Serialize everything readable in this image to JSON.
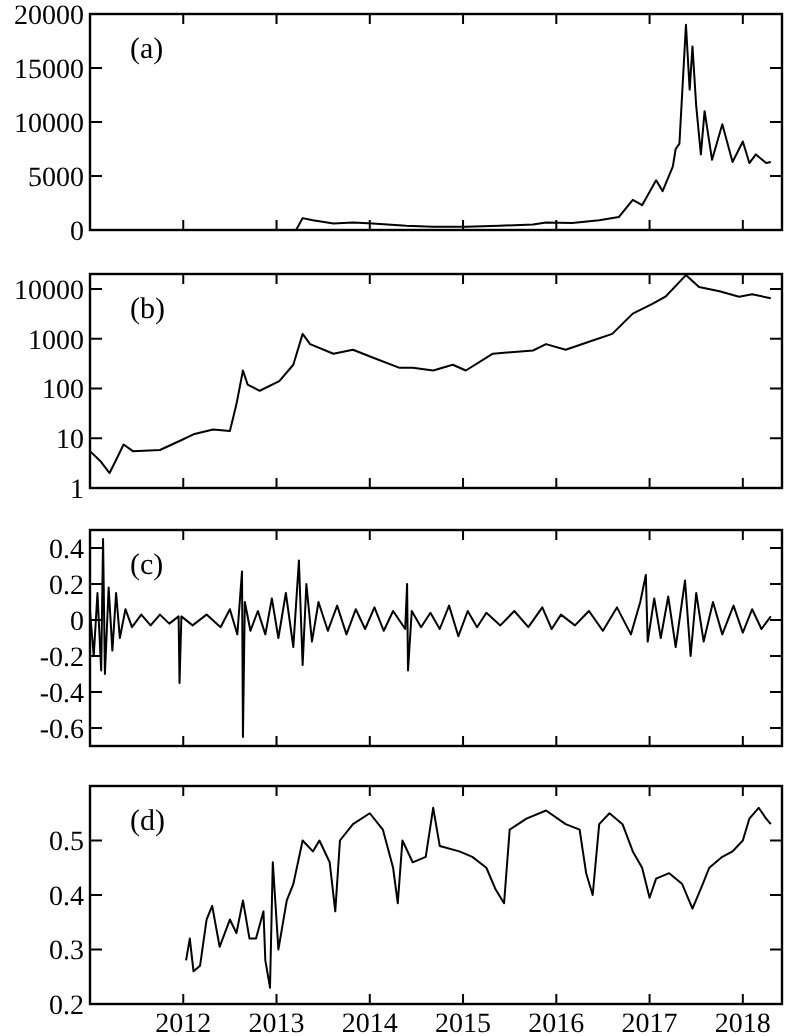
{
  "chart_data": [
    {
      "type": "line",
      "annotations": [
        "(a)"
      ],
      "xlim": [
        2011,
        2018.42
      ],
      "xticks": [
        2012,
        2013,
        2014,
        2015,
        2016,
        2017,
        2018
      ],
      "ylim": [
        0,
        20000
      ],
      "yticks": [
        0,
        5000,
        10000,
        15000,
        20000
      ],
      "tick_labels": "y",
      "grid": false,
      "marker": "none",
      "line_style": "solid",
      "series": [
        {
          "color": "#000000",
          "x": [
            2011.0,
            2012.61,
            2013.21,
            2013.28,
            2013.39,
            2013.61,
            2013.82,
            2014.03,
            2014.39,
            2014.68,
            2015.03,
            2015.39,
            2015.75,
            2015.89,
            2016.17,
            2016.46,
            2016.67,
            2016.82,
            2016.92,
            2017.07,
            2017.14,
            2017.25,
            2017.28,
            2017.32,
            2017.39,
            2017.43,
            2017.46,
            2017.5,
            2017.55,
            2017.59,
            2017.67,
            2017.78,
            2017.89,
            2018.0,
            2018.07,
            2018.14,
            2018.25,
            2018.3
          ],
          "values": [
            0,
            0,
            0,
            1100,
            900,
            600,
            700,
            600,
            400,
            300,
            300,
            400,
            500,
            700,
            650,
            900,
            1200,
            2800,
            2300,
            4600,
            3600,
            5900,
            7500,
            8000,
            19000,
            13000,
            17000,
            11500,
            7000,
            11000,
            6500,
            9800,
            6300,
            8200,
            6200,
            7000,
            6200,
            6300
          ]
        }
      ]
    },
    {
      "type": "line",
      "annotations": [
        "(b)"
      ],
      "xlim": [
        2011,
        2018.42
      ],
      "xticks": [
        2012,
        2013,
        2014,
        2015,
        2016,
        2017,
        2018
      ],
      "log": "y",
      "ylim": [
        1,
        20000
      ],
      "yticks": [
        1,
        10,
        100,
        1000,
        10000
      ],
      "tick_labels": "y",
      "grid": false,
      "marker": "none",
      "line_style": "solid",
      "series": [
        {
          "color": "#000000",
          "x": [
            2011.0,
            2011.11,
            2011.21,
            2011.29,
            2011.36,
            2011.46,
            2011.75,
            2011.96,
            2012.11,
            2012.32,
            2012.5,
            2012.57,
            2012.64,
            2012.69,
            2012.82,
            2013.03,
            2013.18,
            2013.28,
            2013.36,
            2013.61,
            2013.82,
            2014.03,
            2014.32,
            2014.46,
            2014.68,
            2014.89,
            2015.03,
            2015.32,
            2015.75,
            2015.89,
            2016.1,
            2016.39,
            2016.6,
            2016.82,
            2017.03,
            2017.17,
            2017.39,
            2017.53,
            2017.75,
            2017.96,
            2018.1,
            2018.3
          ],
          "values": [
            5.5,
            3.5,
            2,
            4,
            7.5,
            5.5,
            5.8,
            8.8,
            12,
            15,
            14,
            48,
            230,
            120,
            90,
            140,
            300,
            1250,
            780,
            500,
            600,
            420,
            260,
            260,
            230,
            300,
            230,
            500,
            580,
            780,
            600,
            920,
            1250,
            3200,
            5000,
            7000,
            19000,
            11000,
            9000,
            7000,
            7800,
            6500
          ]
        }
      ]
    },
    {
      "type": "line",
      "annotations": [
        "(c)"
      ],
      "xlim": [
        2011,
        2018.42
      ],
      "xticks": [
        2012,
        2013,
        2014,
        2015,
        2016,
        2017,
        2018
      ],
      "ylim": [
        -0.7,
        0.5
      ],
      "yticks": [
        -0.6,
        -0.4,
        -0.2,
        0,
        0.2,
        0.4
      ],
      "tick_labels": "y",
      "grid": false,
      "marker": "none",
      "line_style": "solid",
      "series": [
        {
          "color": "#000000",
          "x": [
            2011.0,
            2011.04,
            2011.08,
            2011.12,
            2011.14,
            2011.16,
            2011.2,
            2011.24,
            2011.28,
            2011.32,
            2011.38,
            2011.45,
            2011.55,
            2011.65,
            2011.75,
            2011.85,
            2011.95,
            2011.96,
            2011.98,
            2012.1,
            2012.25,
            2012.4,
            2012.5,
            2012.58,
            2012.63,
            2012.64,
            2012.66,
            2012.72,
            2012.8,
            2012.88,
            2012.95,
            2013.02,
            2013.1,
            2013.18,
            2013.24,
            2013.28,
            2013.32,
            2013.38,
            2013.45,
            2013.55,
            2013.65,
            2013.75,
            2013.85,
            2013.95,
            2014.05,
            2014.15,
            2014.25,
            2014.38,
            2014.4,
            2014.41,
            2014.45,
            2014.55,
            2014.65,
            2014.75,
            2014.85,
            2014.95,
            2015.05,
            2015.15,
            2015.25,
            2015.4,
            2015.55,
            2015.7,
            2015.85,
            2015.95,
            2016.05,
            2016.2,
            2016.35,
            2016.5,
            2016.65,
            2016.8,
            2016.9,
            2016.96,
            2016.98,
            2017.05,
            2017.12,
            2017.2,
            2017.28,
            2017.38,
            2017.44,
            2017.5,
            2017.58,
            2017.68,
            2017.78,
            2017.9,
            2018.0,
            2018.1,
            2018.2,
            2018.3
          ],
          "values": [
            0.05,
            -0.2,
            0.15,
            -0.28,
            0.45,
            -0.3,
            0.18,
            -0.17,
            0.15,
            -0.1,
            0.06,
            -0.04,
            0.03,
            -0.03,
            0.03,
            -0.02,
            0.02,
            -0.35,
            0.02,
            -0.03,
            0.03,
            -0.04,
            0.06,
            -0.08,
            0.27,
            -0.65,
            0.1,
            -0.06,
            0.05,
            -0.08,
            0.12,
            -0.1,
            0.15,
            -0.15,
            0.33,
            -0.25,
            0.2,
            -0.12,
            0.1,
            -0.06,
            0.08,
            -0.08,
            0.06,
            -0.05,
            0.07,
            -0.06,
            0.05,
            -0.05,
            0.2,
            -0.28,
            0.05,
            -0.04,
            0.04,
            -0.05,
            0.08,
            -0.09,
            0.05,
            -0.04,
            0.04,
            -0.03,
            0.05,
            -0.04,
            0.07,
            -0.05,
            0.03,
            -0.03,
            0.05,
            -0.06,
            0.07,
            -0.08,
            0.1,
            0.25,
            -0.12,
            0.12,
            -0.1,
            0.13,
            -0.15,
            0.22,
            -0.2,
            0.15,
            -0.12,
            0.1,
            -0.08,
            0.08,
            -0.07,
            0.06,
            -0.05,
            0.02
          ]
        }
      ]
    },
    {
      "type": "line",
      "annotations": [
        "(d)"
      ],
      "xlim": [
        2011,
        2018.42
      ],
      "xticks": [
        2012,
        2013,
        2014,
        2015,
        2016,
        2017,
        2018
      ],
      "ylim": [
        0.2,
        0.6
      ],
      "yticks": [
        0.2,
        0.3,
        0.4,
        0.5
      ],
      "grid": false,
      "marker": "none",
      "line_style": "solid",
      "series": [
        {
          "color": "#000000",
          "x": [
            2012.03,
            2012.07,
            2012.11,
            2012.18,
            2012.25,
            2012.31,
            2012.39,
            2012.5,
            2012.57,
            2012.64,
            2012.71,
            2012.78,
            2012.86,
            2012.88,
            2012.93,
            2012.96,
            2013.02,
            2013.11,
            2013.18,
            2013.28,
            2013.39,
            2013.46,
            2013.57,
            2013.63,
            2013.68,
            2013.82,
            2014.0,
            2014.14,
            2014.25,
            2014.3,
            2014.35,
            2014.46,
            2014.6,
            2014.68,
            2014.75,
            2014.96,
            2015.1,
            2015.25,
            2015.35,
            2015.44,
            2015.5,
            2015.68,
            2015.89,
            2016.1,
            2016.25,
            2016.32,
            2016.39,
            2016.46,
            2016.57,
            2016.71,
            2016.82,
            2016.92,
            2017.0,
            2017.07,
            2017.21,
            2017.35,
            2017.46,
            2017.57,
            2017.64,
            2017.78,
            2017.89,
            2018.0,
            2018.07,
            2018.17,
            2018.25,
            2018.3
          ],
          "values": [
            0.28,
            0.32,
            0.26,
            0.27,
            0.355,
            0.38,
            0.305,
            0.355,
            0.33,
            0.39,
            0.32,
            0.32,
            0.37,
            0.28,
            0.23,
            0.46,
            0.3,
            0.39,
            0.42,
            0.5,
            0.48,
            0.5,
            0.46,
            0.37,
            0.5,
            0.53,
            0.55,
            0.52,
            0.45,
            0.385,
            0.5,
            0.46,
            0.47,
            0.56,
            0.49,
            0.48,
            0.47,
            0.45,
            0.41,
            0.385,
            0.52,
            0.54,
            0.555,
            0.53,
            0.52,
            0.44,
            0.4,
            0.53,
            0.55,
            0.53,
            0.48,
            0.45,
            0.395,
            0.43,
            0.44,
            0.42,
            0.375,
            0.42,
            0.45,
            0.47,
            0.48,
            0.5,
            0.54,
            0.56,
            0.54,
            0.53
          ]
        }
      ]
    }
  ]
}
